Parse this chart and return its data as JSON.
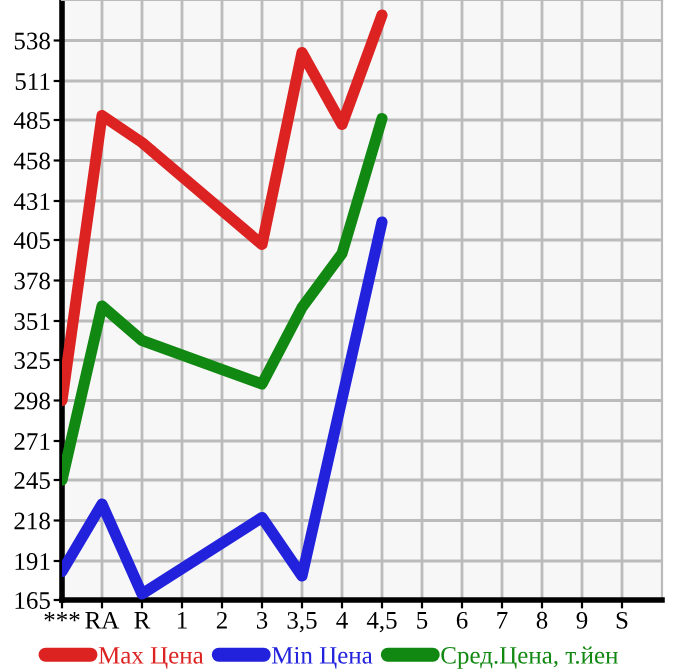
{
  "chart_data": {
    "type": "line",
    "categories": [
      "***",
      "RA",
      "R",
      "1",
      "2",
      "3",
      "3,5",
      "4",
      "4,5",
      "5",
      "6",
      "7",
      "8",
      "9",
      "S"
    ],
    "series": [
      {
        "name": "Max Цена",
        "color": "#dd2222",
        "values": [
          298,
          488,
          470,
          null,
          null,
          402,
          530,
          482,
          555,
          null,
          null,
          null,
          null,
          null,
          null
        ]
      },
      {
        "name": "Min Цена",
        "color": "#2222dd",
        "values": [
          184,
          229,
          169,
          null,
          null,
          220,
          181,
          299,
          417,
          null,
          null,
          null,
          null,
          null,
          null
        ]
      },
      {
        "name": "Сред.Цена, т.йен",
        "color": "#118811",
        "values": [
          245,
          361,
          338,
          null,
          null,
          309,
          360,
          396,
          486,
          null,
          null,
          null,
          null,
          null,
          null
        ]
      }
    ],
    "ylim": [
      165,
      565
    ],
    "yticks": [
      165,
      191,
      218,
      245,
      271,
      298,
      325,
      351,
      378,
      405,
      431,
      458,
      485,
      511,
      538
    ],
    "grid": true,
    "legend": "bottom",
    "marker": "none",
    "line_style": "solid"
  }
}
